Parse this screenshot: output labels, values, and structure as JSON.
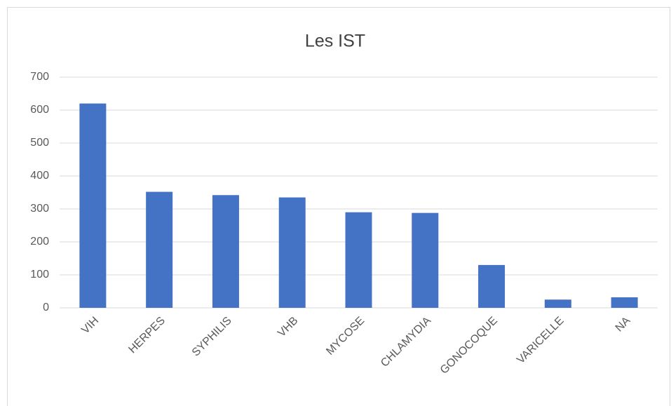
{
  "chart_data": {
    "type": "bar",
    "title": "Les IST",
    "categories": [
      "VIH",
      "HERPES",
      "SYPHILIS",
      "VHB",
      "MYCOSE",
      "CHLAMYDIA",
      "GONOCOQUE",
      "VARICELLE",
      "NA"
    ],
    "values": [
      620,
      352,
      342,
      335,
      290,
      288,
      130,
      25,
      32
    ],
    "color": "#4472c4",
    "ylim": [
      0,
      700
    ],
    "yticks": [
      0,
      100,
      200,
      300,
      400,
      500,
      600,
      700
    ],
    "grid": true
  }
}
